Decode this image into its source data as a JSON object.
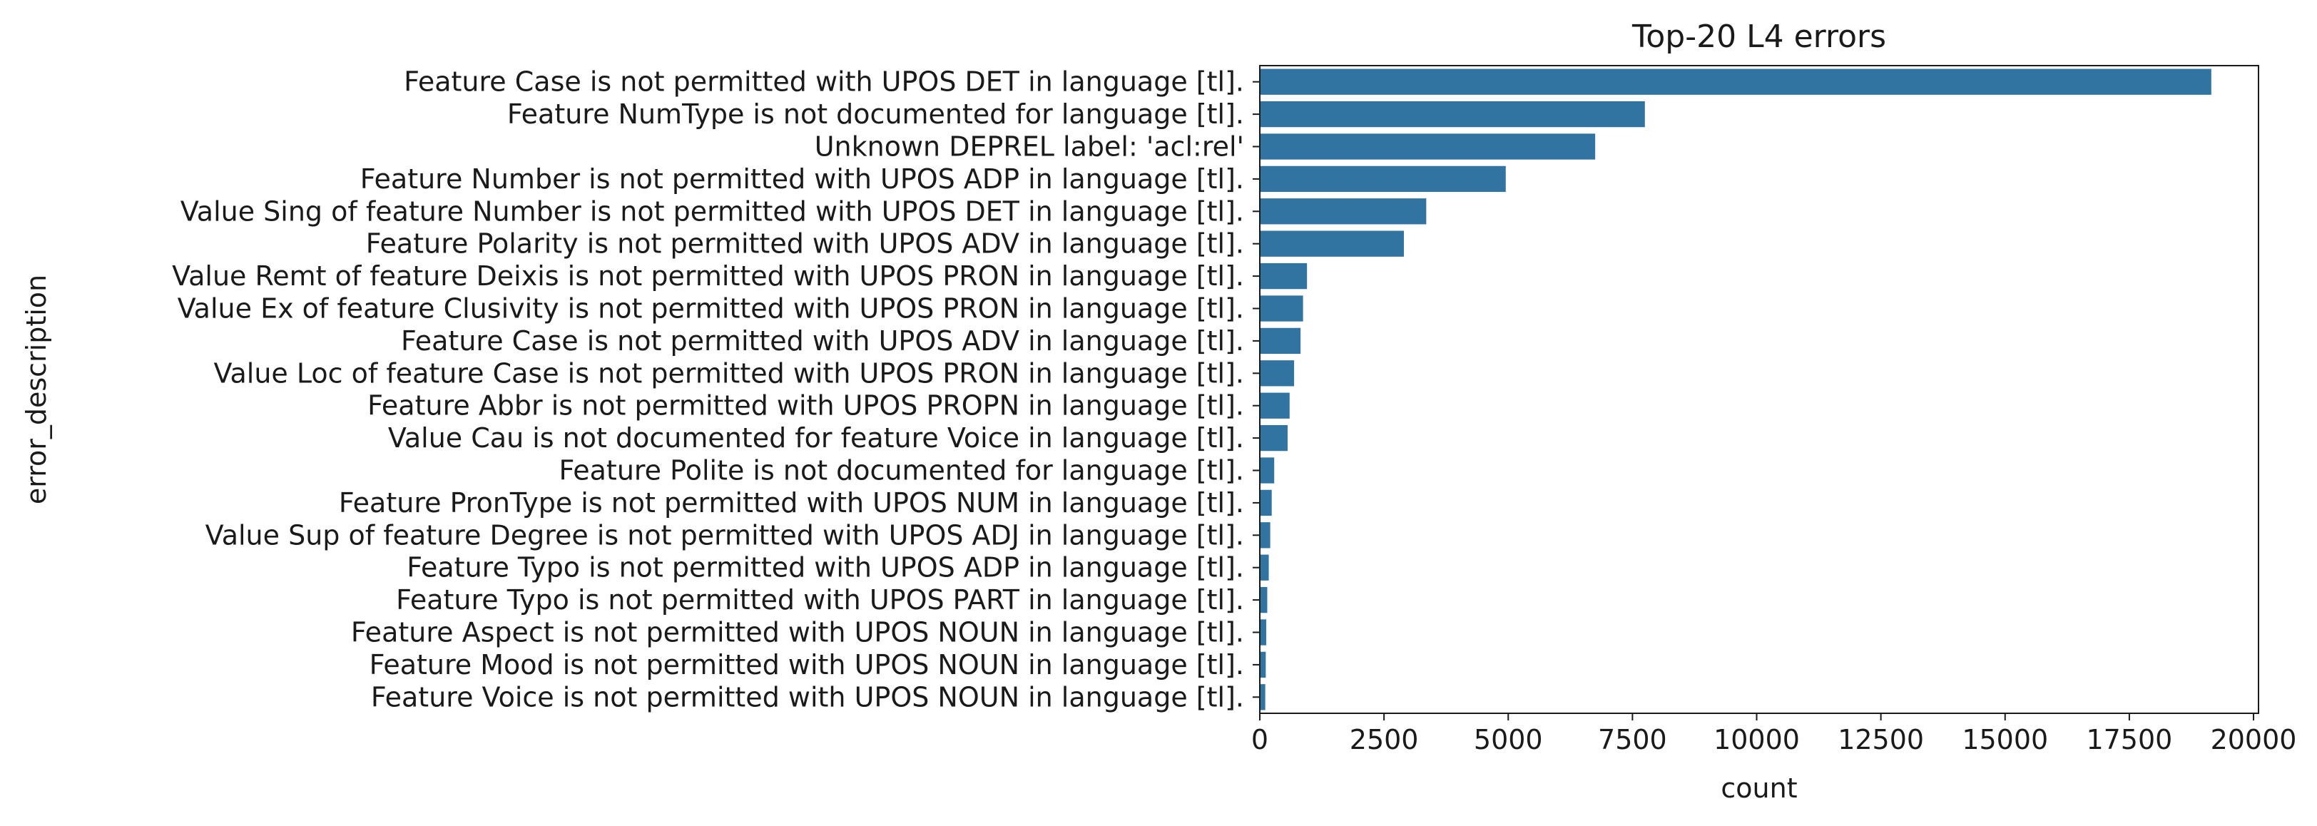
{
  "chart_data": {
    "type": "bar",
    "orientation": "horizontal",
    "title": "Top-20 L4 errors",
    "xlabel": "count",
    "ylabel": "error_description",
    "xlim": [
      0,
      20100
    ],
    "xticks": [
      0,
      2500,
      5000,
      7500,
      10000,
      12500,
      15000,
      17500,
      20000
    ],
    "xtick_labels": [
      "0",
      "2500",
      "5000",
      "7500",
      "10000",
      "12500",
      "15000",
      "17500",
      "20000"
    ],
    "bar_color": "#3274a1",
    "grid": false,
    "categories": [
      "Feature Case is not permitted with UPOS DET in language [tl].",
      "Feature NumType is not documented for language [tl].",
      "Unknown DEPREL label: 'acl:rel'",
      "Feature Number is not permitted with UPOS ADP in language [tl].",
      "Value Sing of feature Number is not permitted with UPOS DET in language [tl].",
      "Feature Polarity is not permitted with UPOS ADV in language [tl].",
      "Value Remt of feature Deixis is not permitted with UPOS PRON in language [tl].",
      "Value Ex of feature Clusivity is not permitted with UPOS PRON in language [tl].",
      "Feature Case is not permitted with UPOS ADV in language [tl].",
      "Value Loc of feature Case is not permitted with UPOS PRON in language [tl].",
      "Feature Abbr is not permitted with UPOS PROPN in language [tl].",
      "Value Cau is not documented for feature Voice in language [tl].",
      "Feature Polite is not documented for language [tl].",
      "Feature PronType is not permitted with UPOS NUM in language [tl].",
      "Value Sup of feature Degree is not permitted with UPOS ADJ in language [tl].",
      "Feature Typo is not permitted with UPOS ADP in language [tl].",
      "Feature Typo is not permitted with UPOS PART in language [tl].",
      "Feature Aspect is not permitted with UPOS NOUN in language [tl].",
      "Feature Mood is not permitted with UPOS NOUN in language [tl].",
      "Feature Voice is not permitted with UPOS NOUN in language [tl]."
    ],
    "values": [
      19150,
      7750,
      6750,
      4950,
      3350,
      2900,
      950,
      870,
      820,
      690,
      600,
      560,
      290,
      240,
      210,
      180,
      150,
      130,
      120,
      110
    ]
  }
}
